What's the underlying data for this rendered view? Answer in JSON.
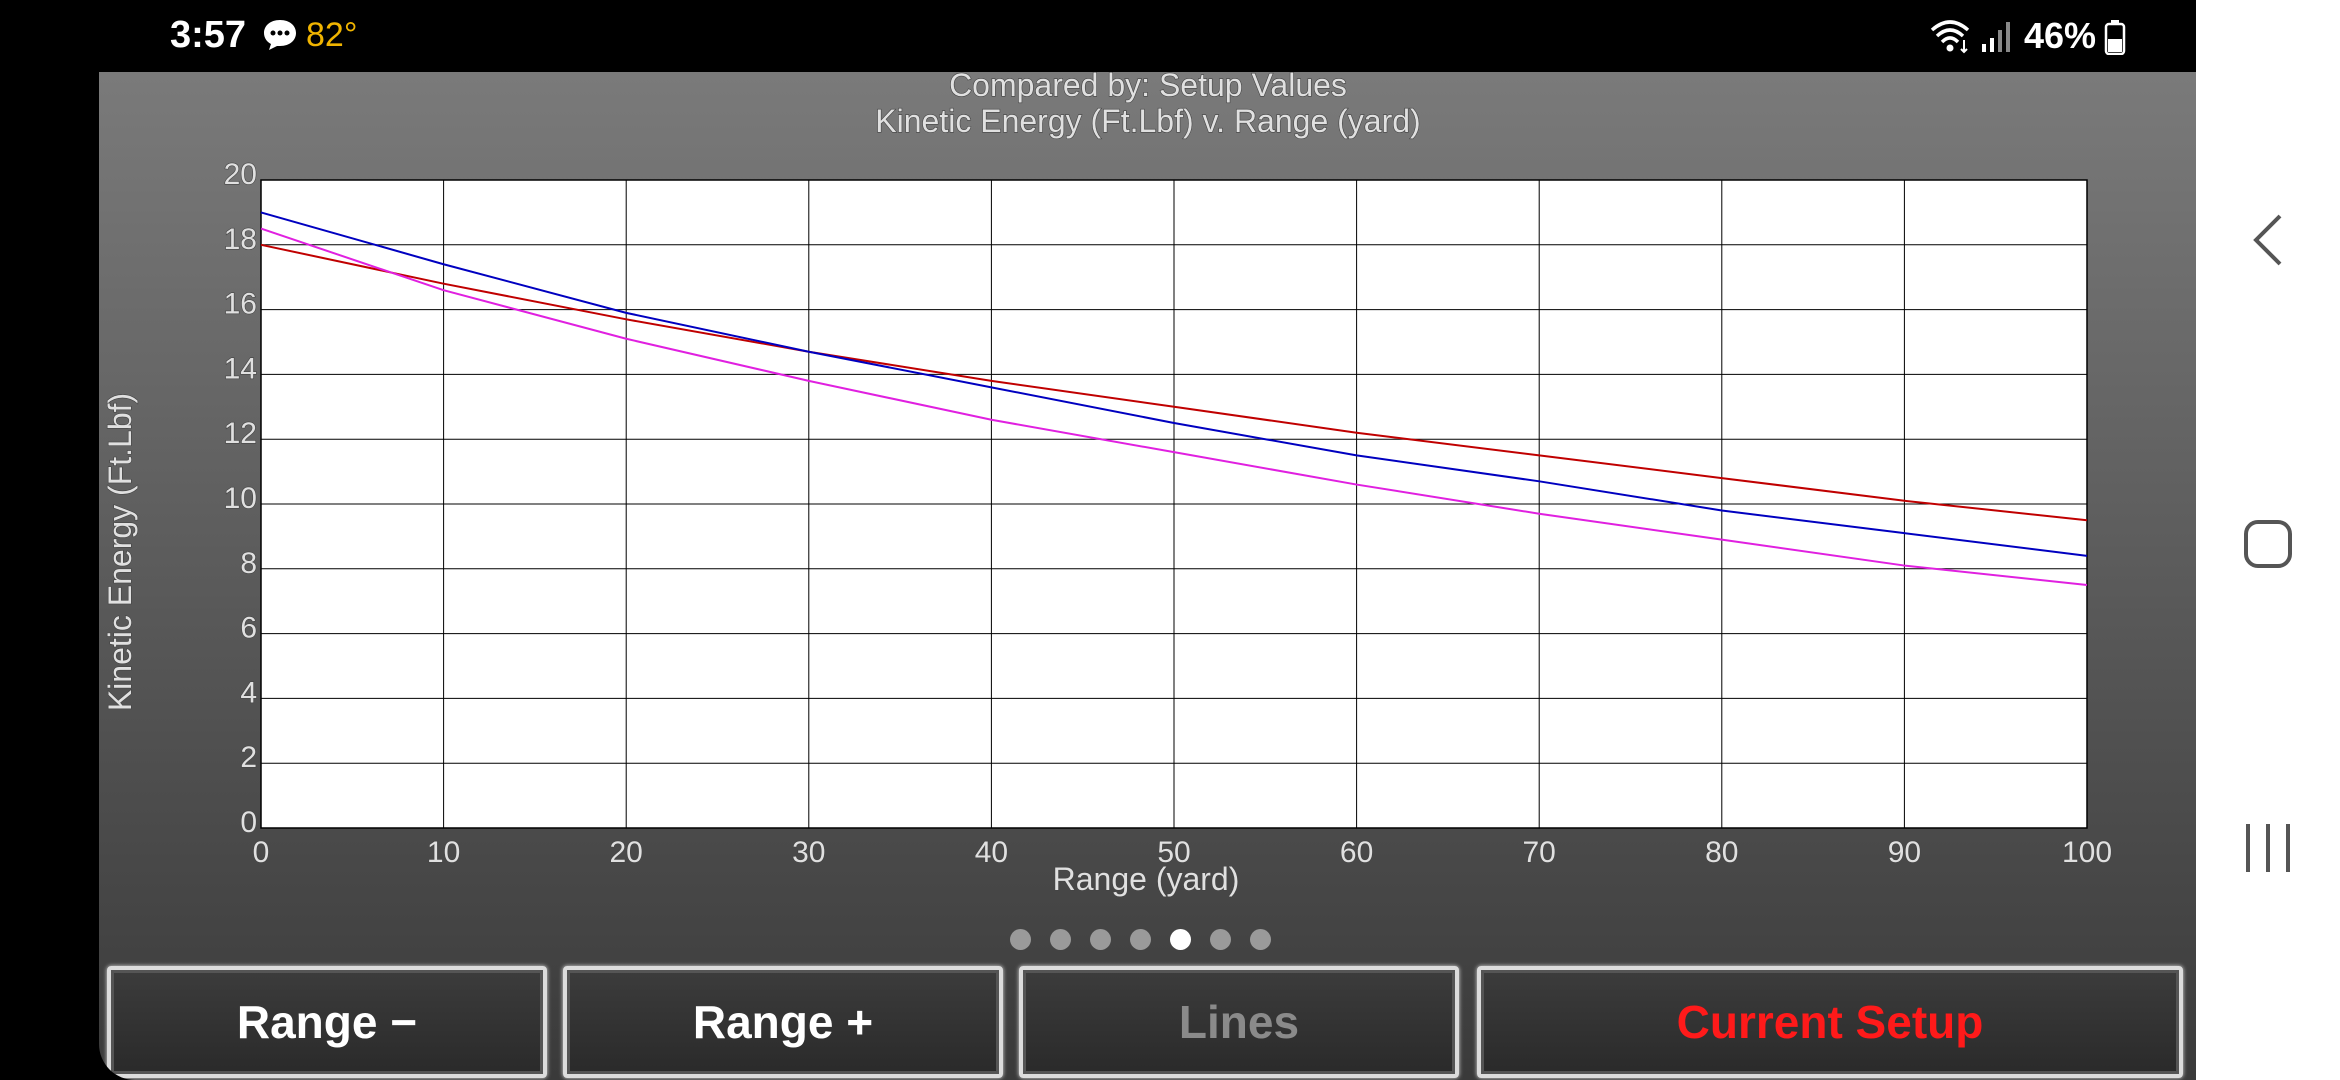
{
  "status": {
    "time": "3:57",
    "temp": "82°",
    "battery": "46%"
  },
  "chart_data": {
    "type": "line",
    "title": "Compared by: Setup Values",
    "subtitle": "Kinetic Energy (Ft.Lbf) v. Range (yard)",
    "xlabel": "Range (yard)",
    "ylabel": "Kinetic Energy (Ft.Lbf)",
    "xlim": [
      0,
      100
    ],
    "ylim": [
      0,
      20
    ],
    "xticks": [
      0,
      10,
      20,
      30,
      40,
      50,
      60,
      70,
      80,
      90,
      100
    ],
    "yticks": [
      0,
      2,
      4,
      6,
      8,
      10,
      12,
      14,
      16,
      18,
      20
    ],
    "grid": true,
    "x": [
      0,
      10,
      20,
      30,
      40,
      50,
      60,
      70,
      80,
      90,
      100
    ],
    "series": [
      {
        "color": "#c00000",
        "values": [
          18.0,
          16.8,
          15.7,
          14.7,
          13.8,
          13.0,
          12.2,
          11.5,
          10.8,
          10.1,
          9.5
        ]
      },
      {
        "color": "#0000c0",
        "values": [
          19.0,
          17.4,
          15.9,
          14.7,
          13.6,
          12.5,
          11.5,
          10.7,
          9.8,
          9.1,
          8.4
        ]
      },
      {
        "color": "#e020e0",
        "values": [
          18.5,
          16.6,
          15.1,
          13.8,
          12.6,
          11.6,
          10.6,
          9.7,
          8.9,
          8.1,
          7.5
        ]
      }
    ]
  },
  "pager": {
    "count": 7,
    "active": 4
  },
  "buttons": {
    "range_minus": "Range −",
    "range_plus": "Range +",
    "lines": "Lines",
    "current_setup": "Current Setup"
  },
  "colors": {
    "current_setup": "#ff1a1a",
    "lines_disabled": "#8a8a8a"
  }
}
